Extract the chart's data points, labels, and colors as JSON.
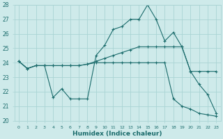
{
  "xlabel": "Humidex (Indice chaleur)",
  "xlim": [
    -0.5,
    23.5
  ],
  "ylim": [
    20,
    28
  ],
  "yticks": [
    20,
    21,
    22,
    23,
    24,
    25,
    26,
    27,
    28
  ],
  "xticks": [
    0,
    1,
    2,
    3,
    4,
    5,
    6,
    7,
    8,
    9,
    10,
    11,
    12,
    13,
    14,
    15,
    16,
    17,
    18,
    19,
    20,
    21,
    22,
    23
  ],
  "bg_color": "#ceeaea",
  "grid_color": "#aad4d4",
  "line_color": "#1a6b6b",
  "line1_x": [
    0,
    1,
    2,
    3,
    4,
    5,
    6,
    7,
    8,
    9,
    10,
    11,
    12,
    13,
    14,
    15,
    16,
    17,
    18,
    19,
    20,
    21,
    22,
    23
  ],
  "line1_y": [
    24.1,
    23.6,
    23.8,
    23.8,
    21.6,
    22.2,
    21.5,
    21.5,
    21.5,
    24.5,
    25.2,
    26.3,
    26.5,
    27.0,
    27.0,
    28.0,
    27.0,
    25.5,
    26.1,
    25.1,
    23.4,
    22.5,
    21.8,
    20.5
  ],
  "line2_x": [
    0,
    1,
    2,
    3,
    4,
    5,
    6,
    7,
    8,
    9,
    10,
    11,
    12,
    13,
    14,
    15,
    16,
    17,
    18,
    19,
    20,
    21,
    22,
    23
  ],
  "line2_y": [
    24.1,
    23.6,
    23.8,
    23.8,
    23.8,
    23.8,
    23.8,
    23.8,
    23.9,
    24.1,
    24.3,
    24.5,
    24.7,
    24.9,
    25.1,
    25.1,
    25.1,
    25.1,
    25.1,
    25.1,
    23.4,
    23.4,
    23.4,
    23.4
  ],
  "line3_x": [
    0,
    1,
    2,
    3,
    4,
    5,
    6,
    7,
    8,
    9,
    10,
    11,
    12,
    13,
    14,
    15,
    16,
    17,
    18,
    19,
    20,
    21,
    22,
    23
  ],
  "line3_y": [
    24.1,
    23.6,
    23.8,
    23.8,
    23.8,
    23.8,
    23.8,
    23.8,
    23.9,
    24.0,
    24.0,
    24.0,
    24.0,
    24.0,
    24.0,
    24.0,
    24.0,
    24.0,
    21.5,
    21.0,
    20.8,
    20.5,
    20.4,
    20.3
  ]
}
